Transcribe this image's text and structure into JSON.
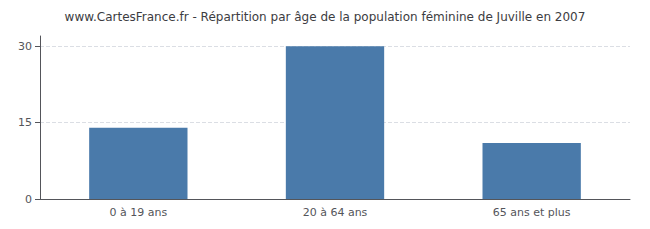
{
  "chart_data": {
    "type": "bar",
    "title": "www.CartesFrance.fr - Répartition par âge de la population féminine de Juville en 2007",
    "categories": [
      "0 à 19 ans",
      "20 à 64 ans",
      "65 ans et plus"
    ],
    "values": [
      14,
      30,
      11
    ],
    "color": "#4a7aaa",
    "ylim": [
      0,
      32
    ],
    "yticks": [
      0,
      15,
      30
    ],
    "grid": true
  }
}
